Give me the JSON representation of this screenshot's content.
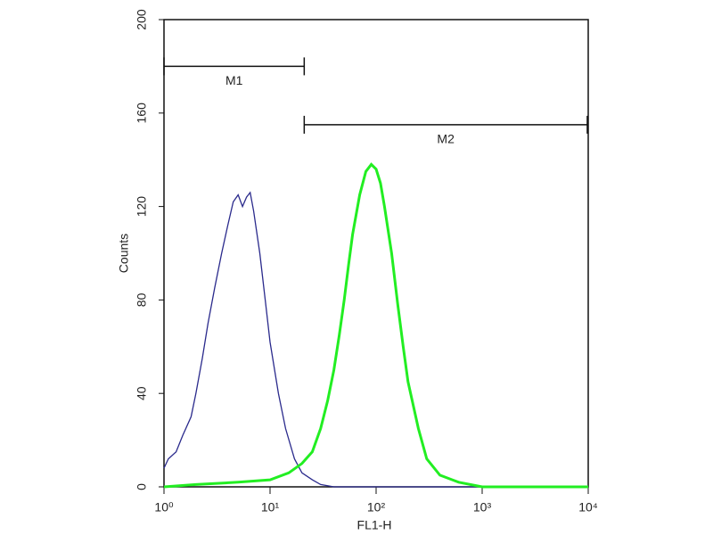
{
  "chart_data": {
    "type": "line",
    "x_label": "FL1-H",
    "y_label": "Counts",
    "xscale": "log",
    "xlim": [
      1,
      10000
    ],
    "ylim": [
      0,
      200
    ],
    "xticks": [
      {
        "value": 1,
        "label": "10⁰"
      },
      {
        "value": 10,
        "label": "10¹"
      },
      {
        "value": 100,
        "label": "10²"
      },
      {
        "value": 1000,
        "label": "10³"
      },
      {
        "value": 10000,
        "label": "10⁴"
      }
    ],
    "yticks": [
      0,
      40,
      80,
      120,
      160,
      200
    ],
    "series": [
      {
        "color": "#2a2a8c",
        "x": [
          1,
          1.1,
          1.3,
          1.5,
          1.8,
          2,
          2.3,
          2.6,
          3,
          3.5,
          4,
          4.5,
          5,
          5.5,
          6,
          6.5,
          7,
          8,
          9,
          10,
          12,
          14,
          17,
          20,
          25,
          30,
          40,
          60,
          100,
          1000
        ],
        "values": [
          8,
          12,
          15,
          22,
          30,
          40,
          55,
          70,
          85,
          100,
          112,
          122,
          125,
          120,
          124,
          126,
          118,
          100,
          80,
          62,
          40,
          25,
          12,
          6,
          3,
          1,
          0,
          0,
          0,
          0
        ]
      },
      {
        "color": "#22ee22",
        "x": [
          1,
          2,
          5,
          10,
          15,
          20,
          25,
          30,
          35,
          40,
          45,
          50,
          55,
          60,
          70,
          80,
          90,
          100,
          110,
          120,
          140,
          160,
          180,
          200,
          250,
          300,
          400,
          600,
          1000,
          10000
        ],
        "values": [
          0,
          1,
          2,
          3,
          6,
          10,
          15,
          25,
          37,
          50,
          65,
          80,
          95,
          108,
          125,
          135,
          138,
          136,
          130,
          120,
          100,
          78,
          60,
          45,
          25,
          12,
          5,
          2,
          0,
          0
        ]
      }
    ],
    "markers": [
      {
        "label": "M1",
        "range": [
          1,
          21
        ],
        "y": 180
      },
      {
        "label": "M2",
        "range": [
          21,
          9800
        ],
        "y": 155
      }
    ]
  }
}
